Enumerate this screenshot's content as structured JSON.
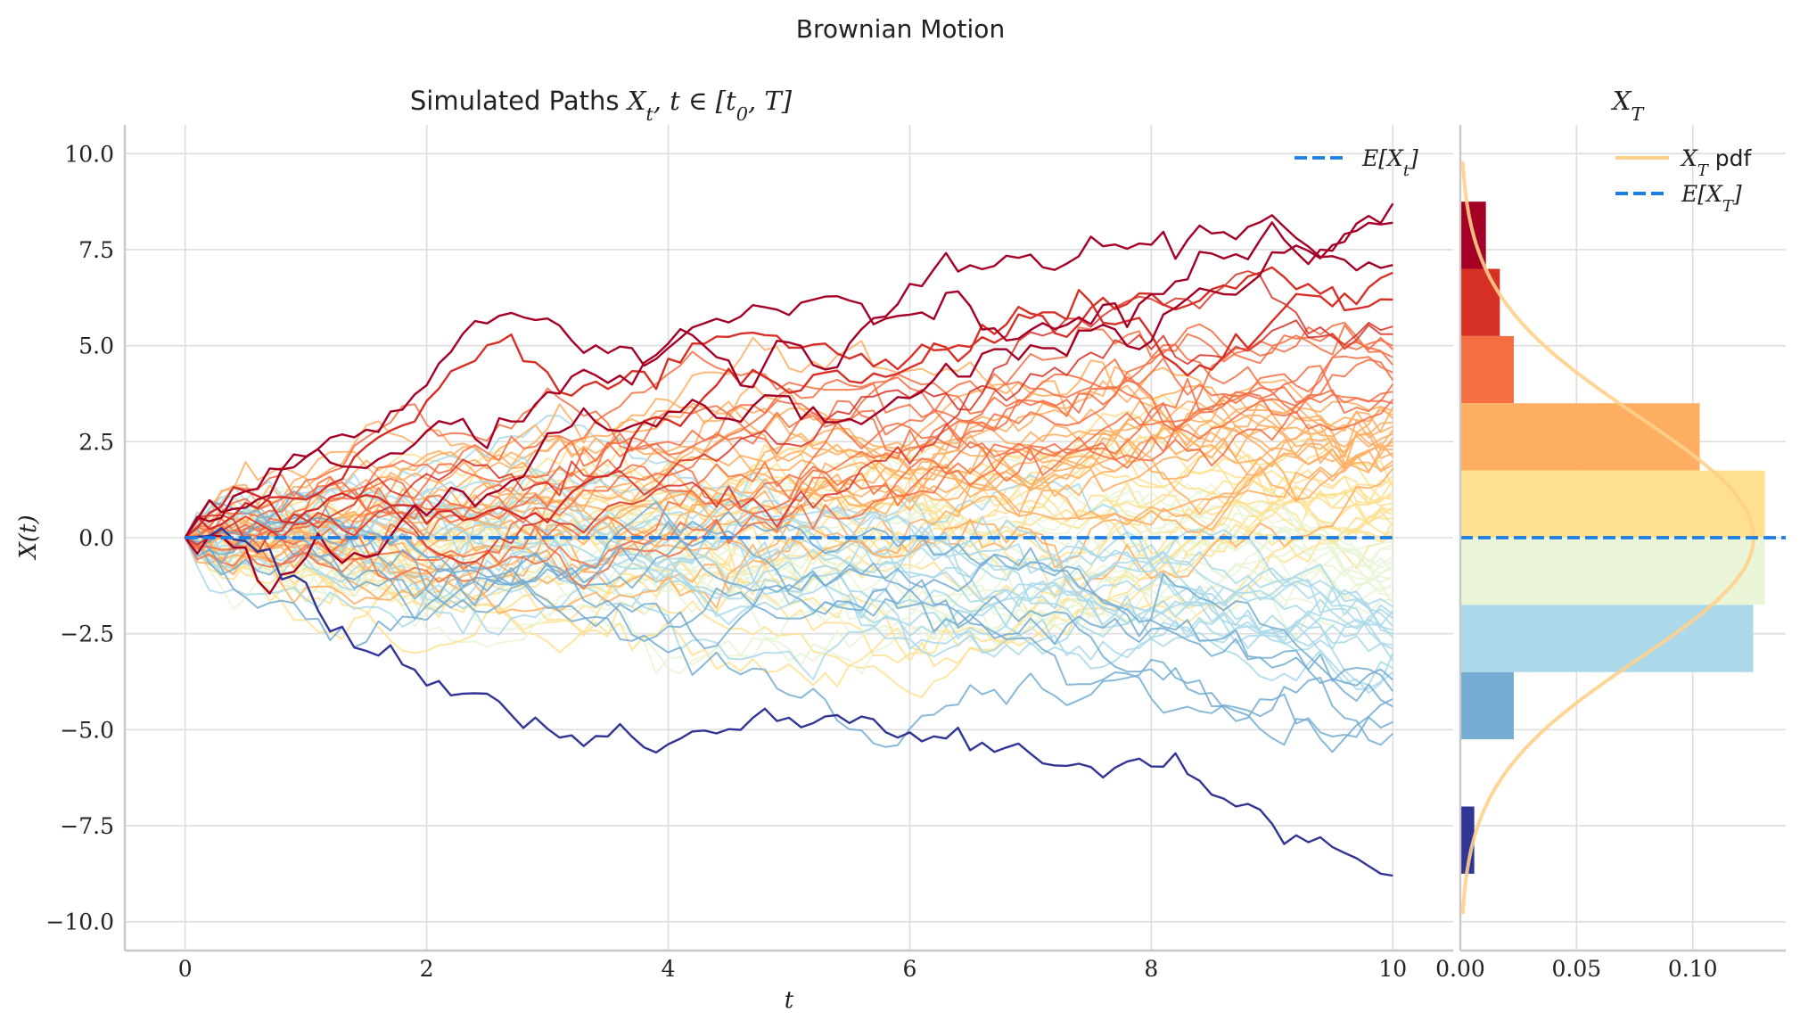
{
  "suptitle": "Brownian Motion",
  "chart_data": [
    {
      "type": "line",
      "title": "Simulated Paths X_t, t ∈ [t_0, T]",
      "xlabel": "t",
      "ylabel": "X(t)",
      "xlim": [
        -0.5,
        10.5
      ],
      "ylim": [
        -10.75,
        10.75
      ],
      "x_ticks": [
        0,
        2,
        4,
        6,
        8,
        10
      ],
      "x_tick_labels": [
        "0",
        "2",
        "4",
        "6",
        "8",
        "10"
      ],
      "y_ticks": [
        10,
        7.5,
        5,
        2.5,
        0,
        -2.5,
        -5,
        -7.5,
        -10
      ],
      "y_tick_labels": [
        "10.0",
        "7.5",
        "5.0",
        "2.5",
        "0.0",
        "−2.5",
        "−5.0",
        "−7.5",
        "−10.0"
      ],
      "grid": true,
      "legend_placement": "top-right",
      "legend": [
        {
          "label": "E[X_t]",
          "style": "dashed",
          "color": "#1a7ee6"
        }
      ],
      "expectation": {
        "value": 0,
        "color": "#1a7ee6"
      },
      "colormap": "RdYlBu_r",
      "t_start": 0,
      "t_end": 10,
      "steps": 100,
      "x0": 0,
      "final_values": [
        8.7,
        8.2,
        7.1,
        6.9,
        6.2,
        5.5,
        5.3,
        5.0,
        4.9,
        4.7,
        4.5,
        4.3,
        4.1,
        4.0,
        3.8,
        3.6,
        3.5,
        3.4,
        3.3,
        3.2,
        3.1,
        3.0,
        2.9,
        2.8,
        2.7,
        2.6,
        2.5,
        2.4,
        2.3,
        2.2,
        2.1,
        2.0,
        1.9,
        1.8,
        1.6,
        1.5,
        1.4,
        1.3,
        1.2,
        1.1,
        1.0,
        0.9,
        0.8,
        0.7,
        0.6,
        0.5,
        0.4,
        0.3,
        0.2,
        0.1,
        0.0,
        -0.1,
        -0.2,
        -0.3,
        -0.5,
        -0.6,
        -0.7,
        -0.8,
        -0.9,
        -1.0,
        -1.1,
        -1.2,
        -1.3,
        -1.5,
        -1.6,
        -1.7,
        -1.8,
        -1.9,
        -2.0,
        -2.1,
        -2.3,
        -2.4,
        -2.5,
        -2.6,
        -2.8,
        -2.9,
        -3.0,
        -3.2,
        -3.4,
        -3.5,
        -3.7,
        -4.0,
        -4.2,
        -4.4,
        -4.8,
        -5.1,
        -8.8
      ]
    },
    {
      "type": "bar",
      "orientation": "horizontal",
      "title": "X_T",
      "xlim": [
        0,
        0.14
      ],
      "ylim": [
        -10.75,
        10.75
      ],
      "x_ticks": [
        0,
        0.05,
        0.1
      ],
      "x_tick_labels": [
        "0.00",
        "0.05",
        "0.10"
      ],
      "grid": true,
      "legend_placement": "top-right",
      "legend": [
        {
          "label": "X_T pdf",
          "style": "solid",
          "color": "#ffd08a"
        },
        {
          "label": "E[X_T]",
          "style": "dashed",
          "color": "#1a7ee6"
        }
      ],
      "bins": [
        {
          "from": 7.0,
          "to": 8.75,
          "density": 0.011,
          "color": "#a50026"
        },
        {
          "from": 5.25,
          "to": 7.0,
          "density": 0.017,
          "color": "#d73027"
        },
        {
          "from": 3.5,
          "to": 5.25,
          "density": 0.023,
          "color": "#f46d43"
        },
        {
          "from": 1.75,
          "to": 3.5,
          "density": 0.103,
          "color": "#fdae61"
        },
        {
          "from": 0.0,
          "to": 1.75,
          "density": 0.131,
          "color": "#fee090"
        },
        {
          "from": -1.75,
          "to": 0.0,
          "density": 0.131,
          "color": "#e9f5d6"
        },
        {
          "from": -3.5,
          "to": -1.75,
          "density": 0.126,
          "color": "#abd9e9"
        },
        {
          "from": -5.25,
          "to": -3.5,
          "density": 0.023,
          "color": "#74add1"
        },
        {
          "from": -7.0,
          "to": -5.25,
          "density": 0.0,
          "color": "#4575b4"
        },
        {
          "from": -8.75,
          "to": -7.0,
          "density": 0.006,
          "color": "#313695"
        }
      ],
      "pdf": {
        "mean": 0,
        "std": 3.1623
      },
      "expectation": {
        "value": 0,
        "color": "#1a7ee6"
      }
    }
  ]
}
